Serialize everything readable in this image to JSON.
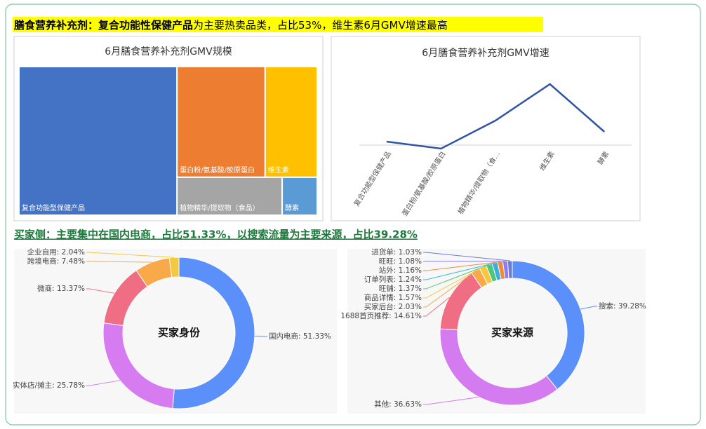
{
  "headings": [
    {
      "bold": "膳食营养补充剂：复合功能性保健产品",
      "rest": "为主要热卖品类，占比53%，维生素6月GMV增速最高"
    },
    {
      "text": "买家侧：主要集中在国内电商，占比51.33%，以搜索流量为主要来源，占比39.28%"
    }
  ],
  "chart_data": [
    {
      "type": "treemap",
      "title": "6月膳食营养补充剂GMV规模",
      "categories": [
        "复合功能型保健产品",
        "蛋白粉/氨基酸/胶原蛋白",
        "维生素",
        "植物精华/提取物（食品）",
        "酵素"
      ],
      "values": [
        53,
        22,
        13,
        9,
        3
      ],
      "colors": [
        "#4472c4",
        "#ed7d31",
        "#ffc000",
        "#a5a5a5",
        "#5b9bd5"
      ]
    },
    {
      "type": "line",
      "title": "6月膳食营养补充剂GMV增速",
      "categories": [
        "复合功能型保健产品",
        "蛋白粉/氨基酸/胶原蛋白",
        "植物精华/提取物（食…",
        "维生素",
        "酵素"
      ],
      "values": [
        5,
        -5,
        35,
        87,
        19
      ],
      "color": "#2f55a4",
      "ylim": [
        -10,
        100
      ]
    },
    {
      "type": "pie",
      "donut": true,
      "center_label": "买家身份",
      "values": [
        51.33,
        25.78,
        13.37,
        7.48,
        2.04
      ],
      "value_labels": [
        "国内电商: 51.33%",
        "实体店/摊主: 25.78%",
        "微商: 13.37%",
        "跨境电商: 7.48%",
        "企业自用: 2.04%"
      ],
      "colors": [
        "#5b8ff9",
        "#d77cf0",
        "#f06e84",
        "#f8a94a",
        "#f5c842"
      ]
    },
    {
      "type": "pie",
      "donut": true,
      "center_label": "买家来源",
      "values": [
        39.28,
        36.63,
        14.61,
        2.03,
        1.57,
        1.37,
        1.24,
        1.16,
        1.08,
        1.03
      ],
      "value_labels": [
        "搜索: 39.28%",
        "其他: 36.63%",
        "1688首页推荐: 14.61%",
        "买家后台: 2.03%",
        "商品详情: 1.57%",
        "旺铺: 1.37%",
        "订单列表: 1.24%",
        "站外: 1.16%",
        "旺旺: 1.08%",
        "进货单: 1.03%"
      ],
      "colors": [
        "#5b8ff9",
        "#d57bf0",
        "#f06e84",
        "#f8a94a",
        "#f5c842",
        "#4fc57a",
        "#3ab0d8",
        "#f28a3c",
        "#8b7cf0",
        "#6d7bd4"
      ]
    }
  ]
}
